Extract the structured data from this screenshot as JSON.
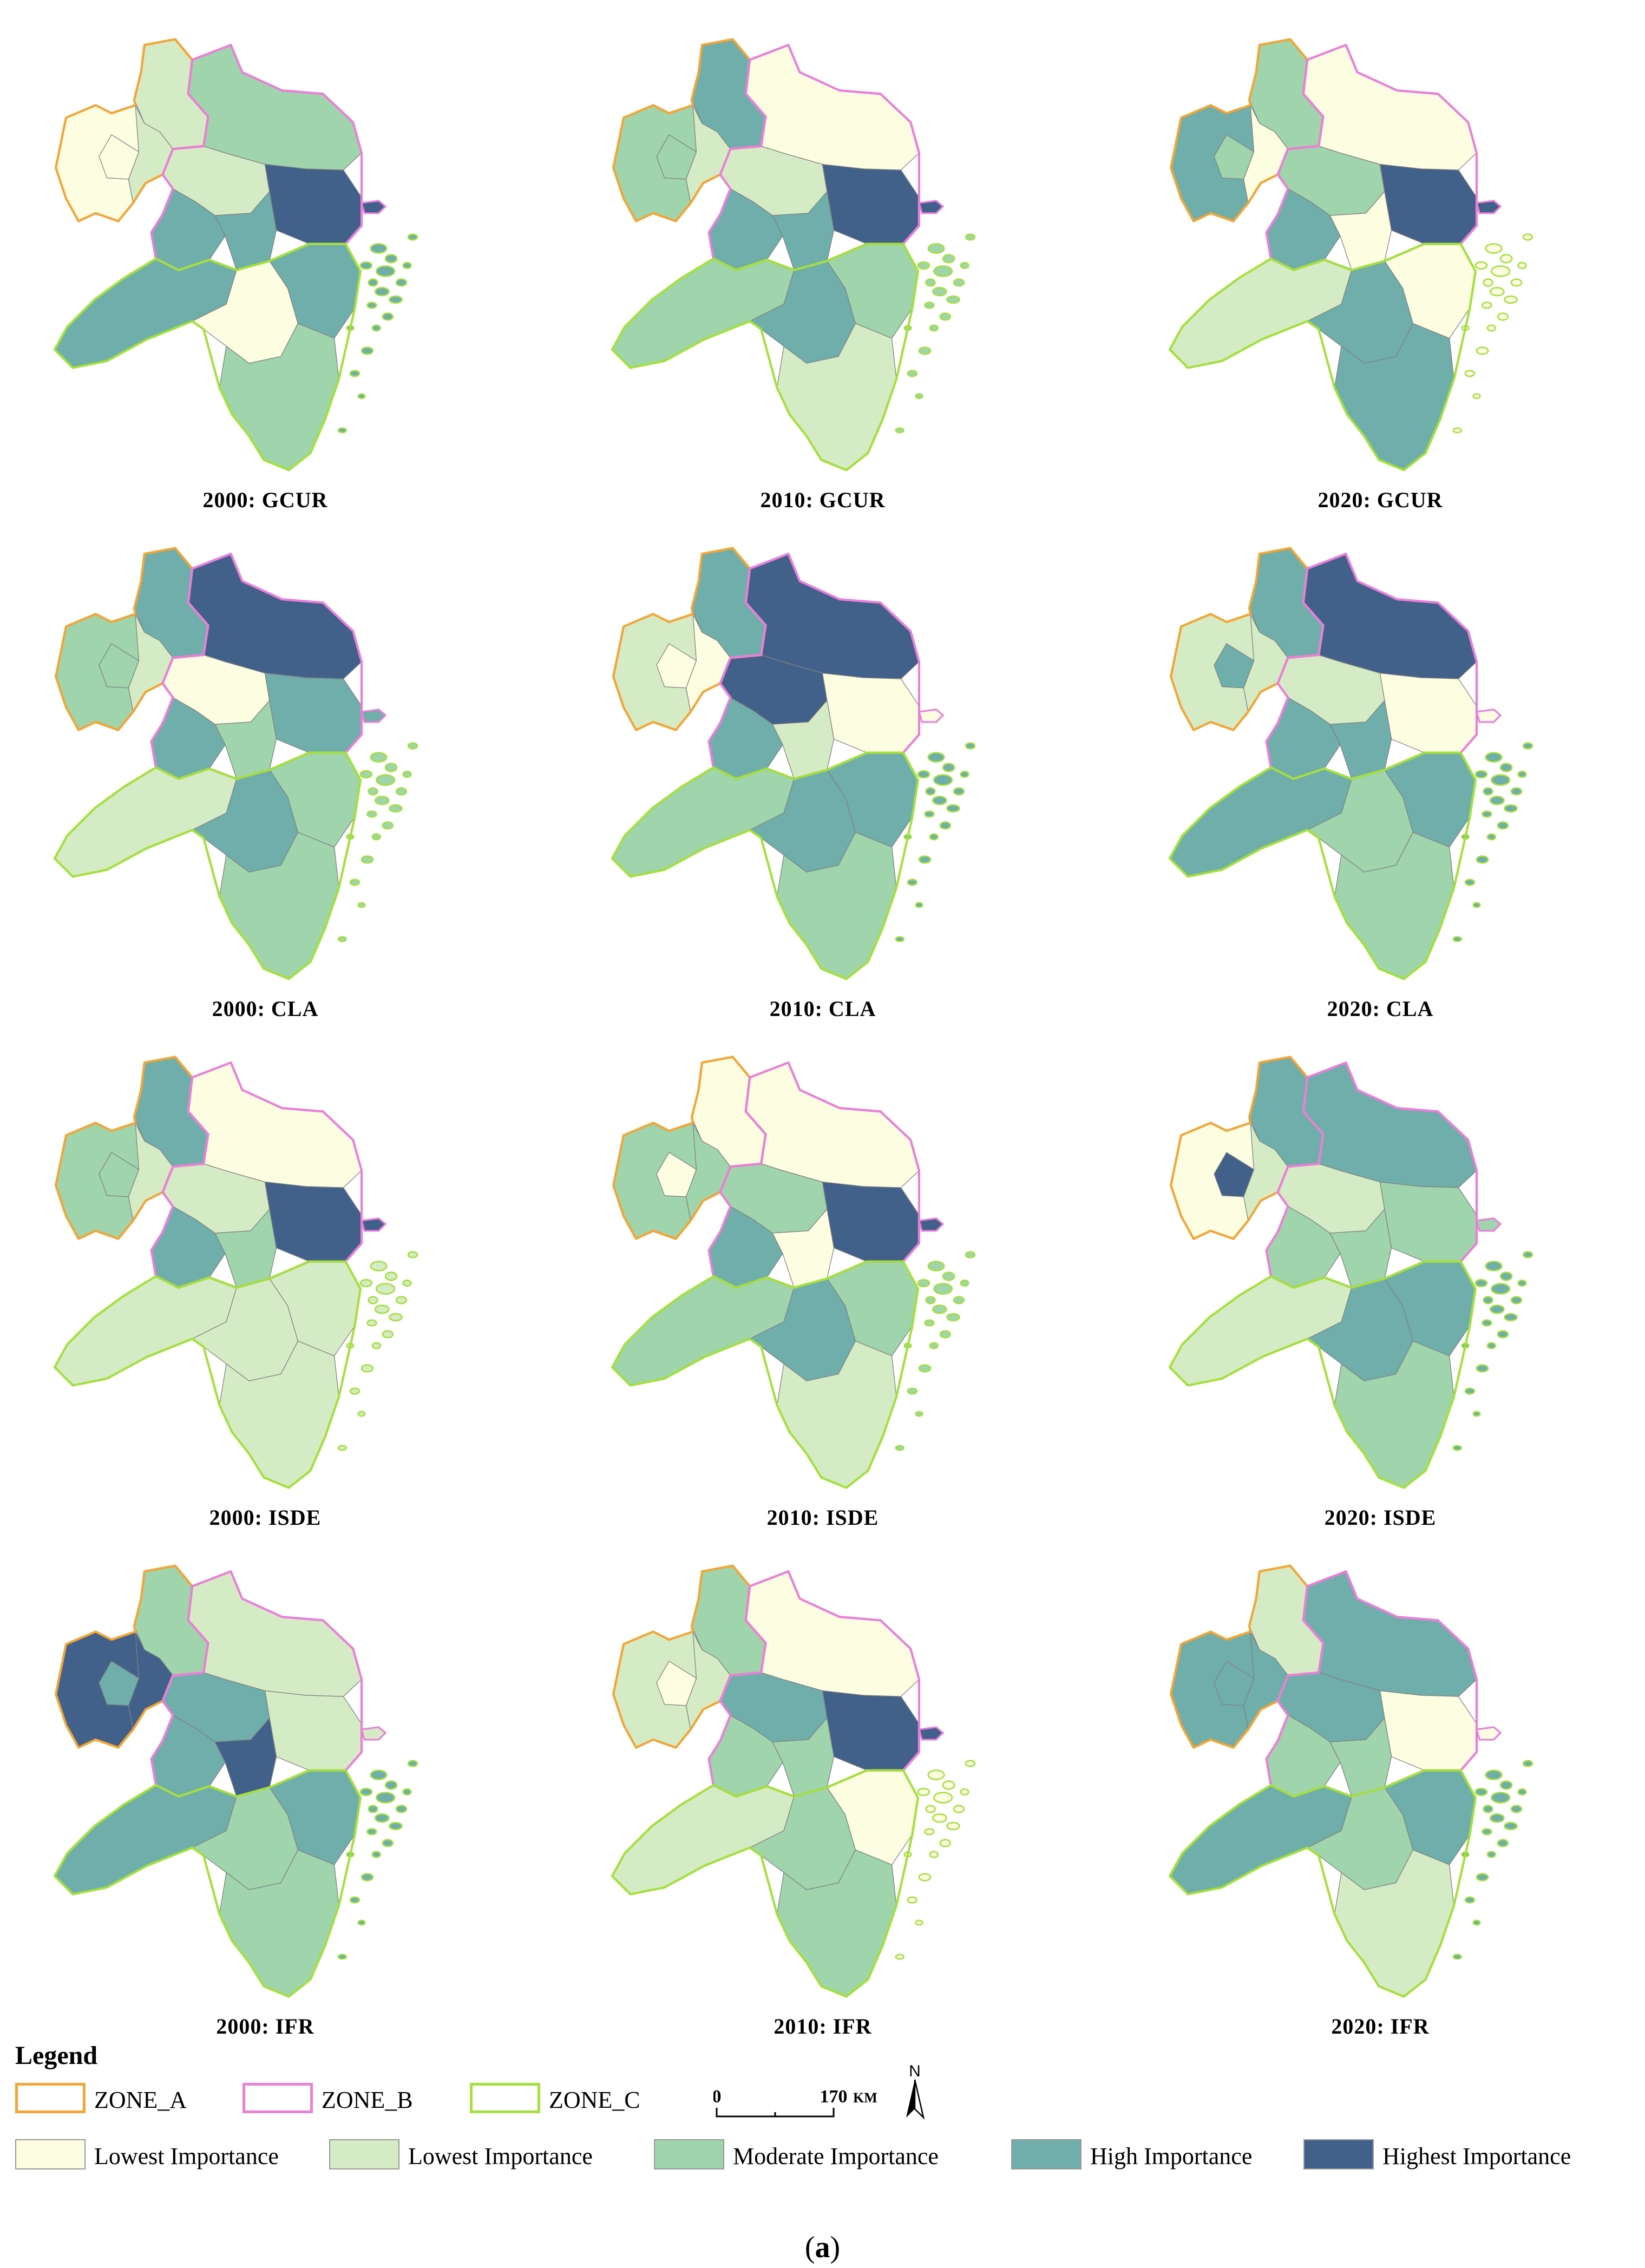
{
  "colors": {
    "zone_a": "#f3a535",
    "zone_b": "#ea7fd9",
    "zone_c": "#a4e03c",
    "lowest1": "#fdfde2",
    "lowest2": "#d5ebc5",
    "moderate": "#9fd4ac",
    "high": "#6faeaa",
    "highest": "#42618a",
    "border": "#808080"
  },
  "panels": [
    {
      "title": "2000: GCUR",
      "classes": [
        1,
        0,
        2,
        1,
        0,
        1,
        4,
        3,
        3,
        3,
        0,
        3,
        2
      ]
    },
    {
      "title": "2010: GCUR",
      "classes": [
        3,
        2,
        0,
        1,
        2,
        1,
        4,
        3,
        3,
        2,
        3,
        2,
        1
      ]
    },
    {
      "title": "2020: GCUR",
      "classes": [
        2,
        3,
        0,
        0,
        2,
        2,
        4,
        3,
        0,
        1,
        3,
        0,
        3
      ]
    },
    {
      "title": "2000: CLA",
      "classes": [
        3,
        2,
        4,
        1,
        2,
        0,
        3,
        3,
        2,
        1,
        3,
        2,
        2
      ]
    },
    {
      "title": "2010: CLA",
      "classes": [
        3,
        1,
        4,
        0,
        0,
        4,
        0,
        3,
        1,
        2,
        3,
        3,
        2
      ]
    },
    {
      "title": "2020: CLA",
      "classes": [
        3,
        1,
        4,
        1,
        3,
        1,
        0,
        3,
        3,
        3,
        2,
        3,
        2
      ]
    },
    {
      "title": "2000: ISDE",
      "classes": [
        3,
        2,
        0,
        1,
        2,
        1,
        4,
        3,
        2,
        1,
        1,
        1,
        1
      ]
    },
    {
      "title": "2010: ISDE",
      "classes": [
        0,
        2,
        0,
        2,
        0,
        2,
        4,
        3,
        0,
        2,
        3,
        2,
        1
      ]
    },
    {
      "title": "2020: ISDE",
      "classes": [
        3,
        0,
        3,
        1,
        4,
        1,
        2,
        2,
        2,
        1,
        3,
        3,
        2
      ]
    },
    {
      "title": "2000: IFR",
      "classes": [
        2,
        4,
        1,
        4,
        3,
        3,
        1,
        3,
        4,
        3,
        2,
        3,
        2
      ]
    },
    {
      "title": "2010: IFR",
      "classes": [
        2,
        1,
        0,
        1,
        0,
        3,
        4,
        2,
        2,
        1,
        2,
        0,
        2
      ]
    },
    {
      "title": "2020: IFR",
      "classes": [
        1,
        3,
        3,
        3,
        3,
        3,
        0,
        2,
        2,
        3,
        2,
        3,
        1
      ]
    }
  ],
  "legend": {
    "title": "Legend",
    "zones": [
      {
        "label": "ZONE_A",
        "color": "#f3a535"
      },
      {
        "label": "ZONE_B",
        "color": "#ea7fd9"
      },
      {
        "label": "ZONE_C",
        "color": "#a4e03c"
      }
    ],
    "classes": [
      {
        "label": "Lowest Importance",
        "color": "#fdfde2"
      },
      {
        "label": "Lowest Importance",
        "color": "#d5ebc5"
      },
      {
        "label": "Moderate Importance",
        "color": "#9fd4ac"
      },
      {
        "label": "High Importance",
        "color": "#6faeaa"
      },
      {
        "label": "Highest Importance",
        "color": "#42618a"
      }
    ],
    "scale": {
      "start": "0",
      "end": "170",
      "unit": "KM"
    },
    "north": "N"
  },
  "caption": {
    "open": "(",
    "letter": "a",
    "close": ")"
  }
}
